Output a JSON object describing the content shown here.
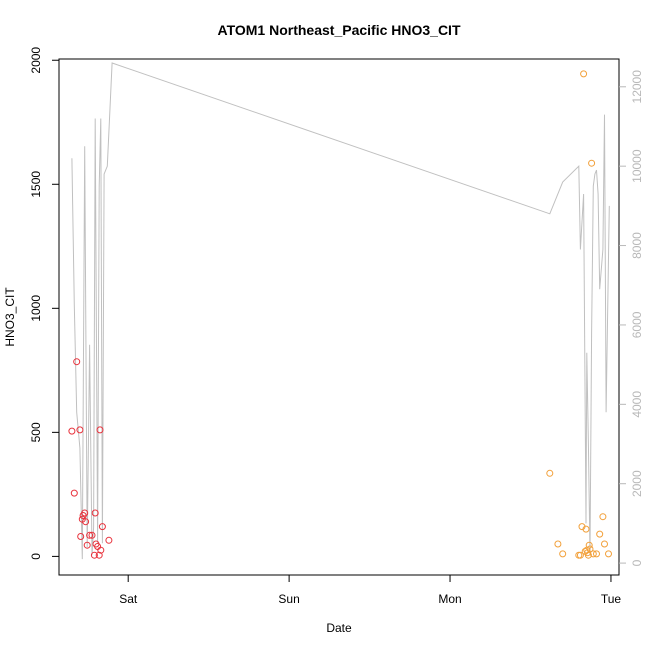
{
  "chart_data": {
    "type": "scatter",
    "title": "ATOM1 Northeast_Pacific HNO3_CIT",
    "xlabel": "Date",
    "ylabel": "HNO3_CIT",
    "x_ticks": [
      {
        "label": "Sat",
        "day": 1.0
      },
      {
        "label": "Sun",
        "day": 2.0
      },
      {
        "label": "Mon",
        "day": 3.0
      },
      {
        "label": "Tue",
        "day": 4.0
      }
    ],
    "xlim": [
      0.57,
      4.05
    ],
    "ylim": [
      -75,
      2005
    ],
    "y_ticks": [
      0,
      500,
      1000,
      1500,
      2000
    ],
    "y2lim": [
      -300,
      12700
    ],
    "y2_ticks": [
      0,
      2000,
      4000,
      6000,
      8000,
      10000,
      12000
    ],
    "colors": {
      "series_a": "#e8323c",
      "series_b": "#f2a03a",
      "secondary_line": "#c0c0c0",
      "right_axis": "#b8b8b8"
    },
    "series": [
      {
        "color": "#e8323c",
        "points": [
          [
            0.65,
            505
          ],
          [
            0.665,
            255
          ],
          [
            0.68,
            785
          ],
          [
            0.7,
            510
          ],
          [
            0.705,
            80
          ],
          [
            0.715,
            150
          ],
          [
            0.72,
            165
          ],
          [
            0.73,
            175
          ],
          [
            0.735,
            140
          ],
          [
            0.745,
            45
          ],
          [
            0.76,
            85
          ],
          [
            0.775,
            85
          ],
          [
            0.79,
            5
          ],
          [
            0.795,
            175
          ],
          [
            0.8,
            50
          ],
          [
            0.81,
            40
          ],
          [
            0.82,
            5
          ],
          [
            0.825,
            510
          ],
          [
            0.83,
            25
          ],
          [
            0.84,
            120
          ],
          [
            0.88,
            65
          ]
        ]
      },
      {
        "color": "#f2a03a",
        "points": [
          [
            3.62,
            335
          ],
          [
            3.67,
            50
          ],
          [
            3.7,
            10
          ],
          [
            3.8,
            5
          ],
          [
            3.81,
            5
          ],
          [
            3.82,
            120
          ],
          [
            3.83,
            1945
          ],
          [
            3.84,
            20
          ],
          [
            3.845,
            110
          ],
          [
            3.85,
            25
          ],
          [
            3.855,
            15
          ],
          [
            3.86,
            5
          ],
          [
            3.865,
            45
          ],
          [
            3.87,
            30
          ],
          [
            3.88,
            1585
          ],
          [
            3.89,
            10
          ],
          [
            3.91,
            10
          ],
          [
            3.93,
            90
          ],
          [
            3.95,
            160
          ],
          [
            3.96,
            50
          ],
          [
            3.985,
            10
          ]
        ]
      }
    ],
    "secondary_line": {
      "axis": "right",
      "points": [
        [
          0.65,
          10200
        ],
        [
          0.665,
          6500
        ],
        [
          0.68,
          3800
        ],
        [
          0.7,
          2900
        ],
        [
          0.715,
          100
        ],
        [
          0.73,
          10500
        ],
        [
          0.745,
          400
        ],
        [
          0.76,
          5500
        ],
        [
          0.775,
          200
        ],
        [
          0.785,
          900
        ],
        [
          0.795,
          11200
        ],
        [
          0.81,
          500
        ],
        [
          0.82,
          9500
        ],
        [
          0.83,
          11200
        ],
        [
          0.84,
          500
        ],
        [
          0.85,
          9800
        ],
        [
          0.87,
          10000
        ],
        [
          0.9,
          12600
        ],
        [
          3.62,
          8800
        ],
        [
          3.7,
          9600
        ],
        [
          3.8,
          10000
        ],
        [
          3.81,
          7900
        ],
        [
          3.83,
          9300
        ],
        [
          3.845,
          1000
        ],
        [
          3.85,
          5300
        ],
        [
          3.86,
          3000
        ],
        [
          3.87,
          200
        ],
        [
          3.88,
          5800
        ],
        [
          3.89,
          9500
        ],
        [
          3.9,
          9800
        ],
        [
          3.91,
          9900
        ],
        [
          3.92,
          9300
        ],
        [
          3.93,
          6900
        ],
        [
          3.95,
          7900
        ],
        [
          3.96,
          11300
        ],
        [
          3.97,
          3800
        ],
        [
          3.99,
          9000
        ]
      ]
    }
  }
}
